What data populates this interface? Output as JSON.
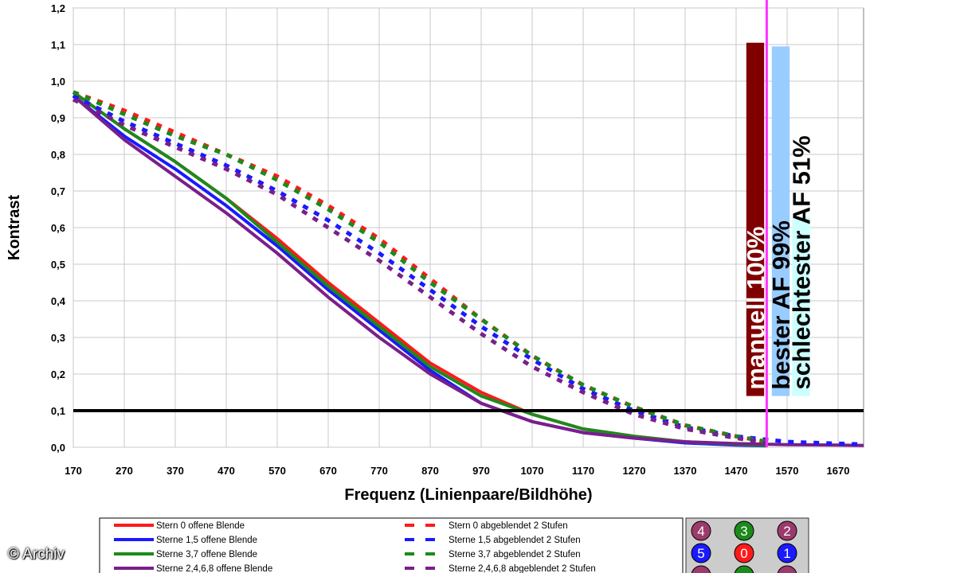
{
  "credit": "© Archiv",
  "chart_data": {
    "type": "line",
    "title": "",
    "xlabel": "Frequenz (Linienpaare/Bildhöhe)",
    "ylabel": "Kontrast",
    "xlim": [
      170,
      1720
    ],
    "ylim": [
      0,
      1.2
    ],
    "xticks": [
      170,
      270,
      370,
      470,
      570,
      670,
      770,
      870,
      970,
      1070,
      1170,
      1270,
      1370,
      1470,
      1570,
      1670
    ],
    "yticks": [
      "0,0",
      "0,1",
      "0,2",
      "0,3",
      "0,4",
      "0,5",
      "0,6",
      "0,7",
      "0,8",
      "0,9",
      "1,0",
      "1,1",
      "1,2"
    ],
    "grid": true,
    "colors": {
      "red": "#ff1a1a",
      "blue": "#1a1aff",
      "green": "#1c8a1c",
      "purple": "#7a1f8a",
      "threshold": "#000000",
      "marker": "#ff33ff",
      "bar_manual": "#800000",
      "bar_best": "#99ccff",
      "bar_worst": "#ccffff"
    },
    "series": [
      {
        "name": "Stern 0 offene Blende",
        "style": "solid",
        "color": "red",
        "x": [
          170,
          270,
          370,
          470,
          570,
          670,
          770,
          870,
          970,
          1070,
          1170,
          1270,
          1370,
          1470,
          1530
        ],
        "y": [
          0.97,
          0.87,
          0.78,
          0.68,
          0.57,
          0.45,
          0.34,
          0.23,
          0.15,
          0.09,
          0.05,
          0.03,
          0.015,
          0.008,
          0.005
        ]
      },
      {
        "name": "Sterne 1,5 offene Blende",
        "style": "solid",
        "color": "blue",
        "x": [
          170,
          270,
          370,
          470,
          570,
          670,
          770,
          870,
          970,
          1070,
          1170,
          1270,
          1370,
          1470,
          1530
        ],
        "y": [
          0.96,
          0.85,
          0.76,
          0.66,
          0.55,
          0.43,
          0.32,
          0.21,
          0.12,
          0.07,
          0.04,
          0.025,
          0.012,
          0.006,
          0.004
        ]
      },
      {
        "name": "Sterne 3,7 offene Blende",
        "style": "solid",
        "color": "green",
        "x": [
          170,
          270,
          370,
          470,
          570,
          670,
          770,
          870,
          970,
          1070,
          1170,
          1270,
          1370,
          1470,
          1530
        ],
        "y": [
          0.97,
          0.87,
          0.78,
          0.68,
          0.56,
          0.44,
          0.33,
          0.22,
          0.14,
          0.09,
          0.05,
          0.03,
          0.015,
          0.008,
          0.005
        ]
      },
      {
        "name": "Sterne 2,4,6,8 offene Blende",
        "style": "solid",
        "color": "purple",
        "x": [
          170,
          270,
          370,
          470,
          570,
          670,
          770,
          870,
          970,
          1070,
          1170,
          1270,
          1370,
          1470,
          1570,
          1670,
          1720
        ],
        "y": [
          0.96,
          0.84,
          0.74,
          0.64,
          0.53,
          0.41,
          0.3,
          0.2,
          0.12,
          0.07,
          0.04,
          0.025,
          0.015,
          0.01,
          0.007,
          0.006,
          0.005
        ]
      },
      {
        "name": "Stern 0 abgeblendet 2 Stufen",
        "style": "dashed",
        "color": "red",
        "x": [
          170,
          270,
          370,
          470,
          570,
          670,
          770,
          870,
          970,
          1070,
          1170,
          1270,
          1370,
          1470,
          1530
        ],
        "y": [
          0.97,
          0.92,
          0.86,
          0.8,
          0.74,
          0.66,
          0.57,
          0.46,
          0.35,
          0.25,
          0.17,
          0.11,
          0.06,
          0.03,
          0.015
        ]
      },
      {
        "name": "Sterne 1,5 abgeblendet 2 Stufen",
        "style": "dashed",
        "color": "blue",
        "x": [
          170,
          270,
          370,
          470,
          570,
          670,
          770,
          870,
          970,
          1070,
          1170,
          1270,
          1370,
          1470,
          1570,
          1670,
          1720
        ],
        "y": [
          0.96,
          0.89,
          0.83,
          0.77,
          0.7,
          0.62,
          0.53,
          0.43,
          0.33,
          0.24,
          0.16,
          0.1,
          0.055,
          0.03,
          0.015,
          0.01,
          0.008
        ]
      },
      {
        "name": "Sterne 3,7 abgeblendet 2 Stufen",
        "style": "dashed",
        "color": "green",
        "x": [
          170,
          270,
          370,
          470,
          570,
          670,
          770,
          870,
          970,
          1070,
          1170,
          1270,
          1370,
          1470,
          1530
        ],
        "y": [
          0.97,
          0.91,
          0.85,
          0.8,
          0.73,
          0.65,
          0.56,
          0.45,
          0.35,
          0.25,
          0.17,
          0.11,
          0.06,
          0.03,
          0.015
        ]
      },
      {
        "name": "Sterne 2,4,6,8 abgeblendet 2 Stufen",
        "style": "dashed",
        "color": "purple",
        "x": [
          170,
          270,
          370,
          470,
          570,
          670,
          770,
          870,
          970,
          1070,
          1170,
          1270,
          1370,
          1470,
          1530
        ],
        "y": [
          0.95,
          0.88,
          0.82,
          0.76,
          0.69,
          0.6,
          0.51,
          0.41,
          0.31,
          0.22,
          0.15,
          0.09,
          0.05,
          0.025,
          0.012
        ]
      }
    ],
    "threshold": {
      "y": 0.1
    },
    "marker_line": {
      "x": 1530
    },
    "bars": [
      {
        "label": "manuell 100%",
        "color": "bar_manual",
        "text_color": "#ffffff",
        "x0": 1490,
        "x1": 1525,
        "y": 1.105,
        "ybottom": 0.14
      },
      {
        "label": "bester AF 99%",
        "color": "bar_best",
        "text_color": "#000000",
        "x0": 1540,
        "x1": 1575,
        "y": 1.095,
        "ybottom": 0.14
      },
      {
        "label": "schlechtester AF 51%",
        "color": "bar_worst",
        "text_color": "#000000",
        "x0": 1580,
        "x1": 1615,
        "y": 0.63,
        "ybottom": 0.14
      }
    ],
    "legend": {
      "placement": "bottom",
      "entries": [
        "Stern 0 offene Blende",
        "Sterne 1,5 offene Blende",
        "Sterne 3,7 offene Blende",
        "Sterne 2,4,6,8 offene Blende",
        "Stern 0 abgeblendet 2 Stufen",
        "Sterne 1,5 abgeblendet 2 Stufen",
        "Sterne 3,7 abgeblendet 2 Stufen",
        "Sterne 2,4,6,8 abgeblendet 2 Stufen"
      ]
    },
    "badges": [
      {
        "label": "4",
        "color": "#9b3a6b"
      },
      {
        "label": "3",
        "color": "#1c8a1c"
      },
      {
        "label": "2",
        "color": "#9b3a6b"
      },
      {
        "label": "5",
        "color": "#1a1aff"
      },
      {
        "label": "0",
        "color": "#ff1a1a"
      },
      {
        "label": "1",
        "color": "#1a1aff"
      },
      {
        "label": "",
        "color": "#9b3a6b"
      },
      {
        "label": "",
        "color": "#1c8a1c"
      },
      {
        "label": "",
        "color": "#9b3a6b"
      }
    ]
  }
}
